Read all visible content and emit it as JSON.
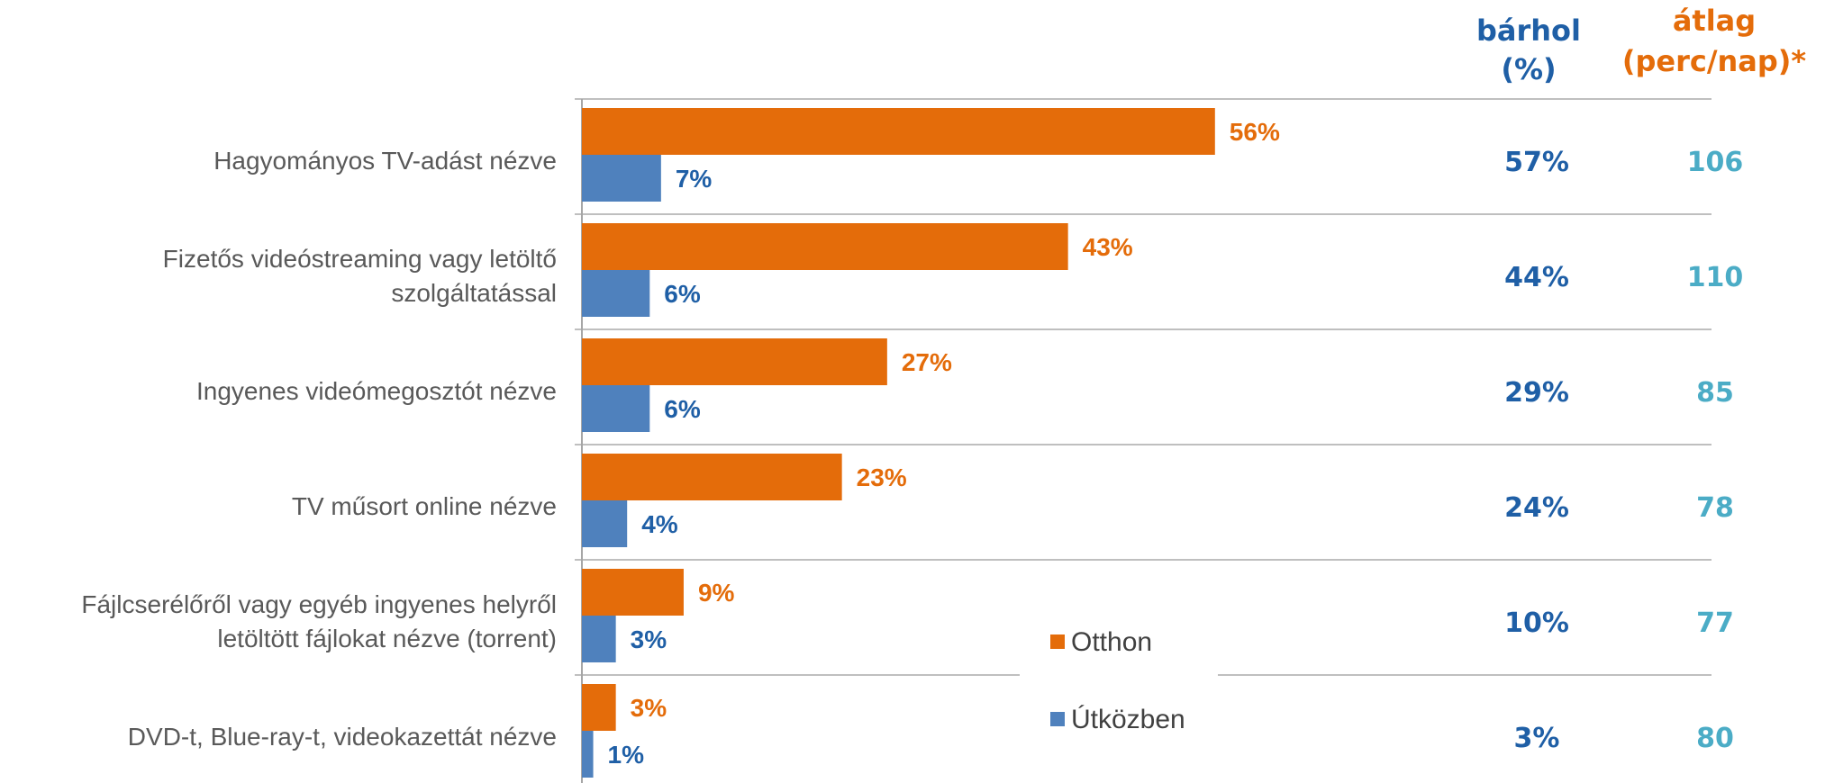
{
  "colors": {
    "otthon": "#e46c0a",
    "utkozben": "#4f81bd",
    "barhol": "#1f5fa6",
    "atlag": "#4bacc6",
    "grid": "#bfbfbf",
    "label": "#595959"
  },
  "columns": {
    "barhol_header": [
      "bárhol",
      "(%)"
    ],
    "atlag_header": [
      "átlag",
      "(perc/nap)*"
    ]
  },
  "legend": {
    "otthon": "Otthon",
    "utkozben": "Útközben"
  },
  "chart_data": {
    "type": "bar",
    "orientation": "horizontal",
    "categories": [
      [
        "Hagyományos TV-adást nézve"
      ],
      [
        "Fizetős videóstreaming vagy letöltő",
        "szolgáltatással"
      ],
      [
        "Ingyenes videómegosztót nézve"
      ],
      [
        "TV műsort online nézve"
      ],
      [
        "Fájlcserélőről vagy egyéb ingyenes helyről",
        "letöltött fájlokat nézve (torrent)"
      ],
      [
        "DVD-t, Blue-ray-t, videokazettát nézve"
      ]
    ],
    "series": [
      {
        "name": "Otthon",
        "values": [
          56,
          43,
          27,
          23,
          9,
          3
        ],
        "labels": [
          "56%",
          "43%",
          "27%",
          "23%",
          "9%",
          "3%"
        ]
      },
      {
        "name": "Útközben",
        "values": [
          7,
          6,
          6,
          4,
          3,
          1
        ],
        "labels": [
          "7%",
          "6%",
          "6%",
          "4%",
          "3%",
          "1%"
        ]
      }
    ],
    "barhol": [
      "57%",
      "44%",
      "29%",
      "24%",
      "10%",
      "3%"
    ],
    "atlag": [
      "106",
      "110",
      "85",
      "78",
      "77",
      "80"
    ],
    "xlim": [
      0,
      100
    ],
    "grid": "horizontal separators",
    "legend_position": "bottom-right"
  }
}
